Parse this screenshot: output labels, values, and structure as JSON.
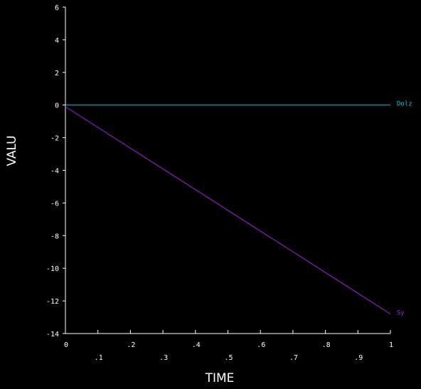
{
  "chart_data": {
    "type": "line",
    "xlabel": "TIME",
    "ylabel": "VALU",
    "xlim": [
      0,
      1
    ],
    "ylim": [
      -14,
      6
    ],
    "x_ticks": [
      0,
      0.1,
      0.2,
      0.3,
      0.4,
      0.5,
      0.6,
      0.7,
      0.8,
      0.9,
      1
    ],
    "x_tick_labels": [
      "0",
      ".1",
      ".2",
      ".3",
      ".4",
      ".5",
      ".6",
      ".7",
      ".8",
      ".9",
      "1"
    ],
    "y_ticks": [
      6,
      4,
      2,
      0,
      -2,
      -4,
      -6,
      -8,
      -10,
      -12,
      -14
    ],
    "y_tick_labels": [
      "6",
      "4",
      "2",
      "0",
      "-2",
      "-4",
      "-6",
      "-8",
      "-10",
      "-12",
      "-14"
    ],
    "grid": false,
    "legend": "inline labels at right end of each line",
    "background": "#000000",
    "axis_color": "#ffffff",
    "series": [
      {
        "name": "Dolz",
        "color": "#00c8d8",
        "x": [
          0,
          1
        ],
        "y": [
          0,
          0
        ]
      },
      {
        "name": "Sy",
        "color": "#a020e0",
        "x": [
          0,
          1
        ],
        "y": [
          -0.1,
          -12.8
        ]
      }
    ]
  }
}
